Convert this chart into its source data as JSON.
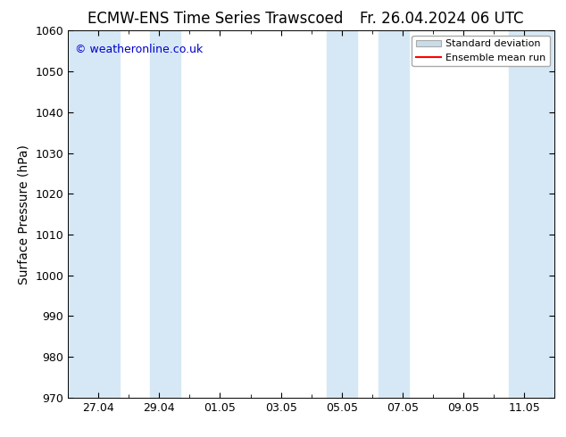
{
  "title_left": "ECMW-ENS Time Series Trawscoed",
  "title_right": "Fr. 26.04.2024 06 UTC",
  "ylabel": "Surface Pressure (hPa)",
  "ylim": [
    970,
    1060
  ],
  "yticks": [
    970,
    980,
    990,
    1000,
    1010,
    1020,
    1030,
    1040,
    1050,
    1060
  ],
  "xtick_labels": [
    "27.04",
    "29.04",
    "01.05",
    "03.05",
    "05.05",
    "07.05",
    "09.05",
    "11.05"
  ],
  "xtick_offsets": [
    1,
    3,
    5,
    7,
    9,
    11,
    13,
    15
  ],
  "x_start": 0,
  "x_end": 16,
  "shaded_bands": [
    {
      "xmin": 0,
      "xmax": 1.7
    },
    {
      "xmin": 2.7,
      "xmax": 3.7
    },
    {
      "xmin": 8.5,
      "xmax": 9.5
    },
    {
      "xmin": 10.2,
      "xmax": 11.2
    },
    {
      "xmin": 14.5,
      "xmax": 16
    }
  ],
  "band_color": "#d6e8f5",
  "watermark_text": "© weatheronline.co.uk",
  "watermark_color": "#0000cc",
  "legend_std_color": "#c8dcea",
  "legend_mean_color": "#ff0000",
  "bg_color": "#ffffff",
  "title_fontsize": 12,
  "axis_label_fontsize": 10,
  "tick_fontsize": 9,
  "legend_fontsize": 8
}
